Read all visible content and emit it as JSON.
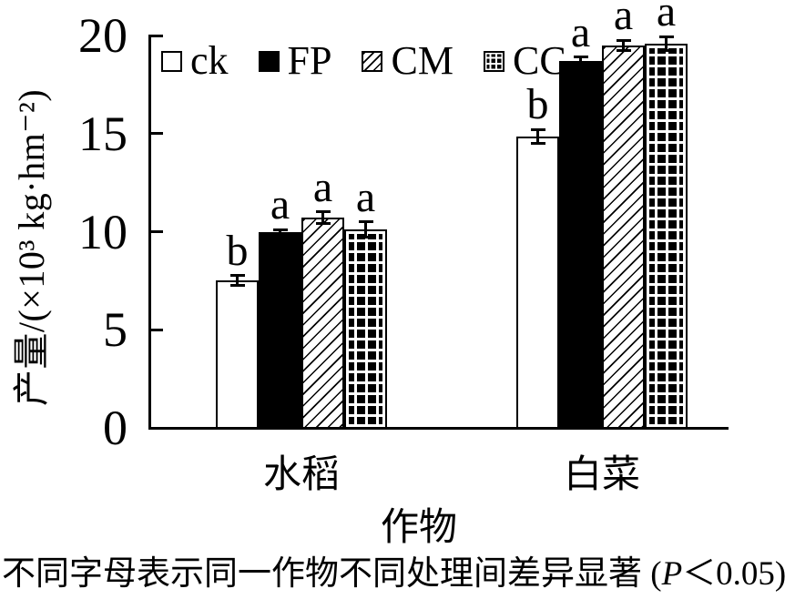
{
  "figure": {
    "caption": {
      "prefix": "不同字母表示同一作物不同处理间差异显著 (",
      "p_symbol": "P",
      "suffix": "＜0.05)"
    }
  },
  "chart_data": {
    "type": "bar",
    "title": "",
    "categories": [
      "水稻",
      "白菜"
    ],
    "xlabel": "作物",
    "ylabel": "产量/(×10³ kg·hm⁻²)",
    "ylim": [
      0,
      20
    ],
    "yticks": [
      0,
      5,
      10,
      15,
      20
    ],
    "grid": false,
    "legend_position": "top-left-inside",
    "colors": {
      "foreground": "#000000",
      "background": "#ffffff"
    },
    "series": [
      {
        "name": "ck",
        "pattern": "open",
        "values": [
          7.5,
          14.85
        ],
        "errors": [
          0.25,
          0.35
        ],
        "sig_letters": [
          "b",
          "b"
        ]
      },
      {
        "name": "FP",
        "pattern": "solid",
        "values": [
          10.0,
          18.7
        ],
        "errors": [
          0.1,
          0.2
        ],
        "sig_letters": [
          "a",
          "a"
        ]
      },
      {
        "name": "CM",
        "pattern": "hatch",
        "values": [
          10.7,
          19.5
        ],
        "errors": [
          0.3,
          0.25
        ],
        "sig_letters": [
          "a",
          "a"
        ]
      },
      {
        "name": "CC",
        "pattern": "grid",
        "values": [
          10.1,
          19.6
        ],
        "errors": [
          0.4,
          0.35
        ],
        "sig_letters": [
          "a",
          "a"
        ]
      }
    ]
  }
}
